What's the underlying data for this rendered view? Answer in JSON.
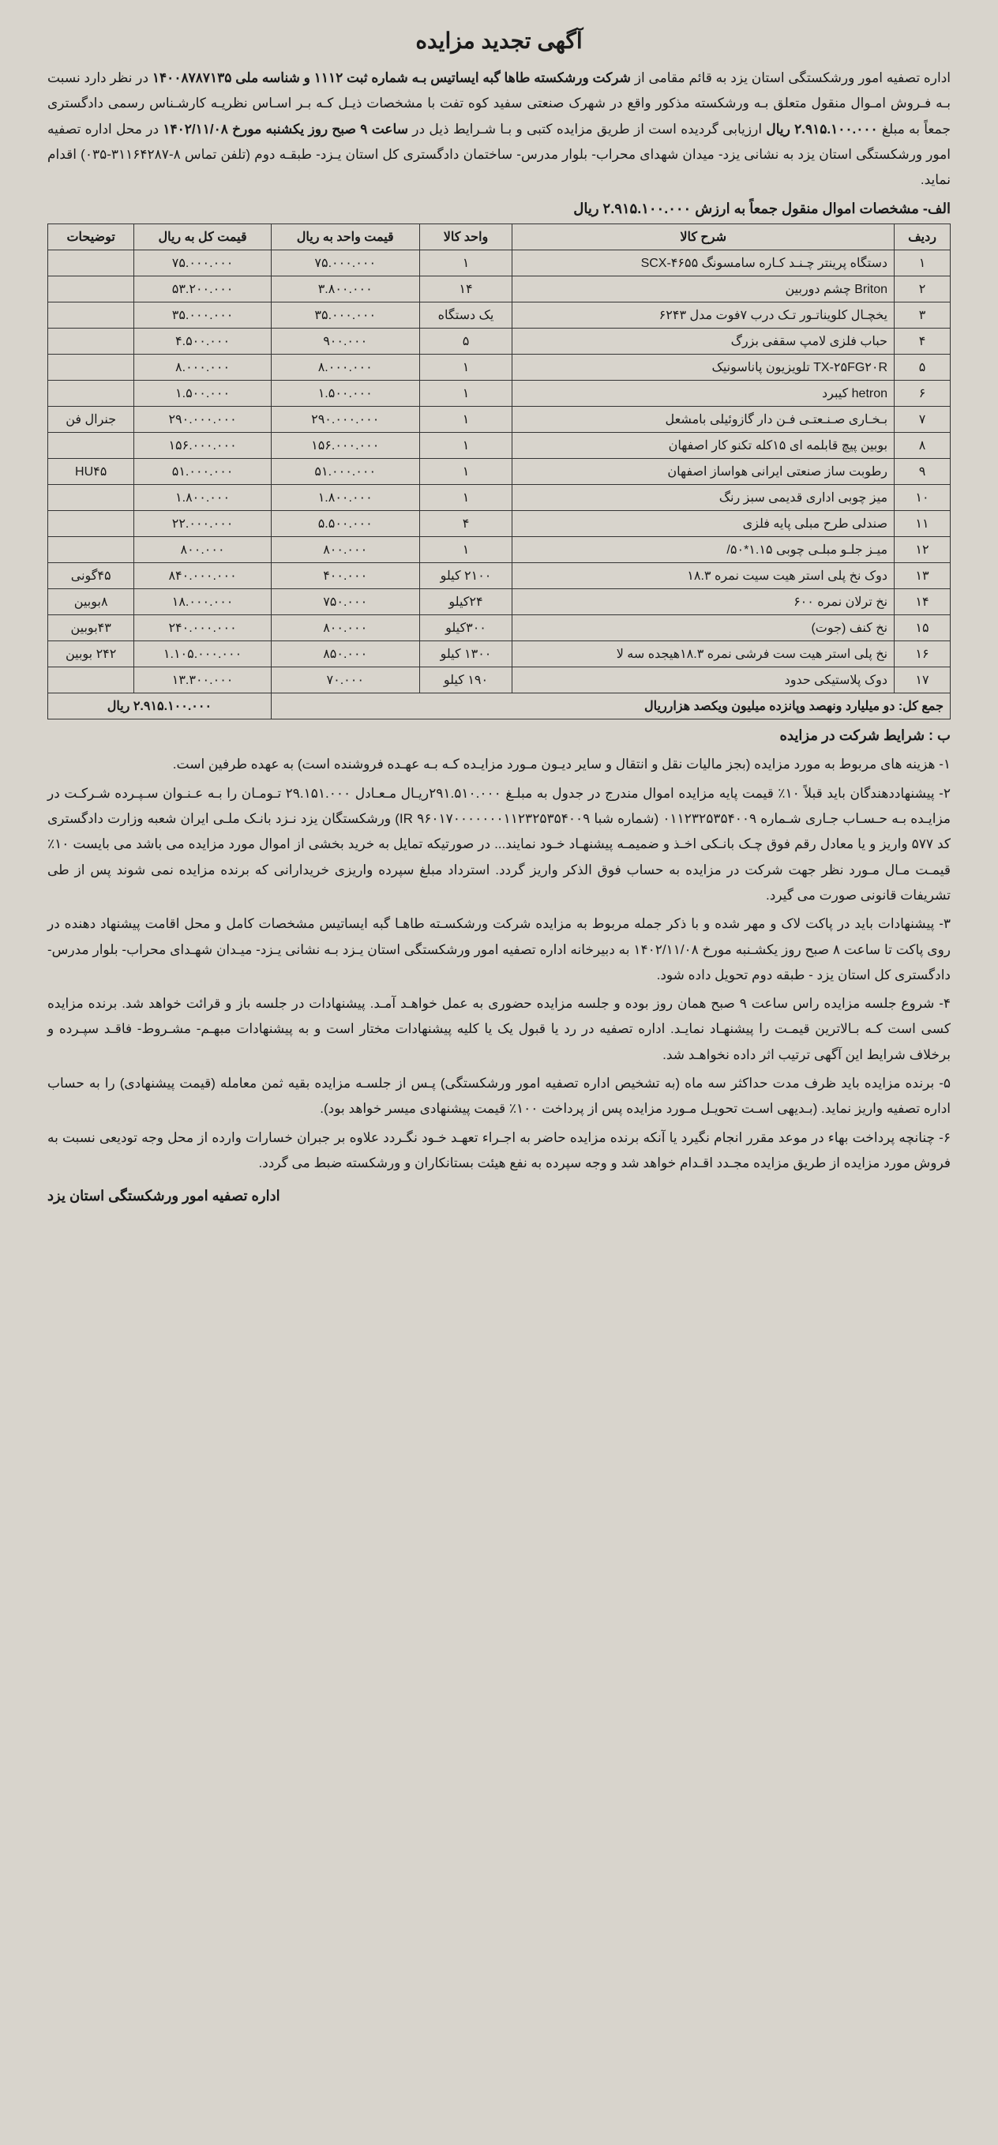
{
  "title": "آگهی تجدید مزایده",
  "intro_parts": [
    "اداره تصفیه امور ورشکستگی استان یزد به قائم مقامی از ",
    "شرکت ورشکسته طاها گبه ایساتیس بـه شماره ثبت ۱۱۱۲ و شناسه ملی ۱۴۰۰۸۷۸۷۱۳۵",
    " در نظر دارد نسبت بـه فـروش امـوال منقول متعلق بـه ورشکسته مذکور واقع در شهرک صنعتی سفید کوه تفت با مشخصات ذیـل کـه بـر اسـاس نظریـه کارشـناس رسمی دادگستری جمعاً به مبلغ ",
    "۲.۹۱۵.۱۰۰.۰۰۰ ریال",
    " ارزیابی گردیده است از طریق مزایده کتبی و بـا شـرایط ذیل در ",
    "ساعت ۹ صبح روز یکشنبه مورخ ۱۴۰۲/۱۱/۰۸",
    " در محل اداره تصفیه امور ورشکستگی استان یزد به نشانی یزد- میدان شهدای محراب- بلوار مدرس- ساختمان دادگستری کل استان یـزد- طبقـه دوم (تلفن تماس ۸-۳۱۱۶۴۲۸۷-۰۳۵) اقدام نماید."
  ],
  "section_a_title": "الف- مشخصات اموال منقول جمعاً به ارزش ۲.۹۱۵.۱۰۰.۰۰۰ ریال",
  "table": {
    "headers": [
      "ردیف",
      "شرح کالا",
      "واحد کالا",
      "قیمت واحد به ریال",
      "قیمت کل به ریال",
      "توضیحات"
    ],
    "rows": [
      [
        "۱",
        "دستگاه پرینتر چـنـد کـاره سامسونگ SCX-۴۶۵۵",
        "۱",
        "۷۵.۰۰۰.۰۰۰",
        "۷۵.۰۰۰.۰۰۰",
        ""
      ],
      [
        "۲",
        "Briton چشم دوربین",
        "۱۴",
        "۳.۸۰۰.۰۰۰",
        "۵۳.۲۰۰.۰۰۰",
        ""
      ],
      [
        "۳",
        "یخچـال کلویناتـور تـک درب ۷فوت مدل ۶۲۴۳",
        "یک دستگاه",
        "۳۵.۰۰۰.۰۰۰",
        "۳۵.۰۰۰.۰۰۰",
        ""
      ],
      [
        "۴",
        "حباب فلزی لامپ سقفی بزرگ",
        "۵",
        "۹۰۰.۰۰۰",
        "۴.۵۰۰.۰۰۰",
        ""
      ],
      [
        "۵",
        "TX-۲۵FG۲۰R تلویزیون پاناسونیک",
        "۱",
        "۸.۰۰۰.۰۰۰",
        "۸.۰۰۰.۰۰۰",
        ""
      ],
      [
        "۶",
        "hetron کیبرد",
        "۱",
        "۱.۵۰۰.۰۰۰",
        "۱.۵۰۰.۰۰۰",
        ""
      ],
      [
        "۷",
        "بـخـاری صـنـعتـی فـن دار گازوئیلی بامشعل",
        "۱",
        "۲۹۰.۰۰۰.۰۰۰",
        "۲۹۰.۰۰۰.۰۰۰",
        "جنرال فن"
      ],
      [
        "۸",
        "بوبین پیچ قابلمه ای ۱۵کله تکنو کار اصفهان",
        "۱",
        "۱۵۶.۰۰۰.۰۰۰",
        "۱۵۶.۰۰۰.۰۰۰",
        ""
      ],
      [
        "۹",
        "رطوبت ساز صنعتی ایرانی هواساز اصفهان",
        "۱",
        "۵۱.۰۰۰.۰۰۰",
        "۵۱.۰۰۰.۰۰۰",
        "HU۴۵"
      ],
      [
        "۱۰",
        "میز چوبی اداری قدیمی سبز رنگ",
        "۱",
        "۱.۸۰۰.۰۰۰",
        "۱.۸۰۰.۰۰۰",
        ""
      ],
      [
        "۱۱",
        "صندلی طرح مبلی پایه فلزی",
        "۴",
        "۵.۵۰۰.۰۰۰",
        "۲۲.۰۰۰.۰۰۰",
        ""
      ],
      [
        "۱۲",
        "میـز جلـو مبلـی چوبی ۱.۱۵*۵۰/",
        "۱",
        "۸۰۰.۰۰۰",
        "۸۰۰.۰۰۰",
        ""
      ],
      [
        "۱۳",
        "دوک نخ پلی استر هیت سیت نمره ۱۸.۳",
        "۲۱۰۰ کیلو",
        "۴۰۰.۰۰۰",
        "۸۴۰.۰۰۰.۰۰۰",
        "۴۵گونی"
      ],
      [
        "۱۴",
        "نخ ترلان نمره ۶۰۰",
        "۲۴کیلو",
        "۷۵۰.۰۰۰",
        "۱۸.۰۰۰.۰۰۰",
        "۸بوبین"
      ],
      [
        "۱۵",
        "نخ کنف (جوت)",
        "۳۰۰کیلو",
        "۸۰۰.۰۰۰",
        "۲۴۰.۰۰۰.۰۰۰",
        "۴۳بوبین"
      ],
      [
        "۱۶",
        "نخ پلی استر هیت ست فرشی نمره ۱۸.۳هیجده سه لا",
        "۱۳۰۰ کیلو",
        "۸۵۰.۰۰۰",
        "۱.۱۰۵.۰۰۰.۰۰۰",
        "۲۴۲ بوبین"
      ],
      [
        "۱۷",
        "دوک پلاستیکی حدود",
        "۱۹۰ کیلو",
        "۷۰.۰۰۰",
        "۱۳.۳۰۰.۰۰۰",
        ""
      ]
    ],
    "total_label": "جمع کل: دو میلیارد ونهصد وپانزده میلیون ویکصد هزارریال",
    "total_value": "۲.۹۱۵.۱۰۰.۰۰۰ ریال"
  },
  "section_b_title": "ب : شرایط شرکت در مزایده",
  "conditions": [
    "۱- هزینه های مربوط به مورد مزایده (بجز مالیات نقل و انتقال و سایر دیـون مـورد مزایـده کـه بـه عهـده فروشنده است) به عهده طرفین است.",
    "۲- پیشنهاددهندگان باید قبلاً ۱۰٪ قیمت پایه مزایده اموال مندرج در جدول به مبلـغ ۲۹۱.۵۱۰.۰۰۰ریـال مـعـادل ۲۹.۱۵۱.۰۰۰ تـومـان را بـه عـنـوان سـپـرده شـرکـت در مزایـده بـه حـسـاب جـاری شـماره ۰۱۱۲۳۲۵۳۵۴۰۰۹ (شماره شبا ۹۶۰۱۷۰۰۰۰۰۰۰۱۱۲۳۲۵۳۵۴۰۰۹ IR) ورشکستگان یزد نـزد بانـک ملـی ایران شعبه وزارت دادگستری کد ۵۷۷ واریز و یا معادل رقم فوق چـک بانـکی اخـذ و ضمیمـه پیشنهـاد خـود نمایند... در صورتیکه تمایل به خرید بخشی از اموال مورد مزایده می باشد می بایست ۱۰٪ قیمـت مـال مـورد نظر جهت شرکت در مزایده به حساب فوق الذکر واریز گردد. استرداد مبلغ سپرده واریزی خریدارانی که برنده مزایده نمی شوند پس از طی تشریفات قانونی صورت می گیرد.",
    "۳- پیشنهادات باید در پاکت لاک و مهر شده و با ذکر جمله مربوط به مزایده شرکت ورشکسـته طاهـا گبه ایساتیس مشخصات کامل و محل اقامت پیشنهاد دهنده در روی پاکت تا ساعت ۸ صبح روز یکشـنبه مورخ ۱۴۰۲/۱۱/۰۸ به دبیرخانه اداره تصفیه امور ورشکستگی استان یـزد بـه نشانی یـزد- میـدان شهـدای محراب- بلوار مدرس- دادگستری کل استان یزد - طبقه دوم تحویل داده شود.",
    "۴- شروع جلسه مزایده راس ساعت ۹ صبح همان روز بوده و جلسه مزایده حضوری به عمل خواهـد آمـد. پیشنهادات در جلسه باز و قرائت خواهد شد. برنده مزایده کسی است کـه بـالاترین قیمـت را پیشنهـاد نمایـد. اداره تصفیه در رد یا قبول یک یا کلیه پیشنهادات مختار است و به پیشنهادات مبهـم- مشـروط- فاقـد سپـرده و برخلاف شرایط این آگهی ترتیب اثر داده نخواهـد شد.",
    "۵- برنده مزایده باید ظرف مدت حداکثر سه ماه (به تشخیص اداره تصفیه امور ورشکستگی) پـس از جلسـه مزایده بقیه ثمن معامله (قیمت پیشنهادی) را به حساب اداره تصفیه واریز نماید. (بـدیهی اسـت تحویـل مـورد مزایده پس از پرداخت ۱۰۰٪ قیمت پیشنهادی میسر خواهد بود).",
    "۶- چنانچه پرداخت بهاء در موعد مقرر انجام نگیرد یا آنکه برنده مزایده حاضر به اجـراء تعهـد خـود نگـردد علاوه بر جبران خسارات وارده از محل وجه تودیعی نسبت به فروش مورد مزایده از طریق مزایده مجـدد اقـدام خواهد شد و وجه سپرده به نفع هیئت بستانکاران و ورشکسته ضبط می گردد."
  ],
  "footer": "اداره تصفیه امور ورشکستگی استان یزد"
}
